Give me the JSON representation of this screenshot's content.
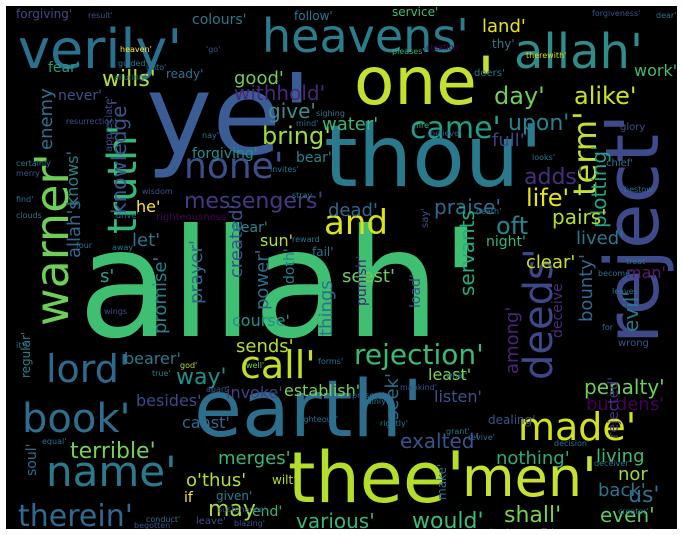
{
  "background": "#000000",
  "palette": [
    "#440154",
    "#482878",
    "#3e4989",
    "#31688e",
    "#26828e",
    "#1f9e89",
    "#35b779",
    "#6ece58",
    "#b5de2b",
    "#fde725"
  ],
  "words": [
    {
      "text": "allah'",
      "color": "#3fbf72"
    },
    {
      "text": "ye'",
      "color": "#3b5d96"
    },
    {
      "text": "thou'",
      "color": "#2a7a8e"
    },
    {
      "text": "one'",
      "color": "#c4e02e"
    },
    {
      "text": "earth'",
      "color": "#2b6f8d"
    },
    {
      "text": "reject'",
      "color": "#3e4a8a"
    },
    {
      "text": "thee'",
      "color": "#b5de2b"
    },
    {
      "text": "men'",
      "color": "#c8e031"
    },
    {
      "text": "verily'",
      "color": "#28728e"
    },
    {
      "text": "heavens'",
      "color": "#2b7c8d"
    },
    {
      "text": "allah'",
      "color": "#2f8c8b"
    },
    {
      "text": "book'",
      "color": "#2e6e8e"
    },
    {
      "text": "name'",
      "color": "#2a7a8e"
    },
    {
      "text": "warner'",
      "color": "#6ece58"
    },
    {
      "text": "truth'",
      "color": "#35b779"
    },
    {
      "text": "none'",
      "color": "#3b4f8a"
    },
    {
      "text": "lord'",
      "color": "#2c6b8e"
    },
    {
      "text": "call'",
      "color": "#c2df23"
    },
    {
      "text": "made'",
      "color": "#d2e21b"
    },
    {
      "text": "deeds'",
      "color": "#3f4788"
    },
    {
      "text": "and",
      "color": "#d8e219"
    },
    {
      "text": "came'",
      "color": "#1f9e89"
    },
    {
      "text": "therein'",
      "color": "#31688e"
    },
    {
      "text": "rejection'",
      "color": "#3aba76"
    },
    {
      "text": "term'",
      "color": "#c4e02e"
    },
    {
      "text": "day'",
      "color": "#6ece58"
    },
    {
      "text": "alike'",
      "color": "#d0e11c"
    },
    {
      "text": "upon'",
      "color": "#26828e"
    },
    {
      "text": "land'",
      "color": "#e5e419"
    },
    {
      "text": "wills'",
      "color": "#b8de29"
    },
    {
      "text": "work'",
      "color": "#3fbc73"
    },
    {
      "text": "withhold'",
      "color": "#482878"
    },
    {
      "text": "good'",
      "color": "#6ece58"
    },
    {
      "text": "give'",
      "color": "#3e8d8b"
    },
    {
      "text": "bring'",
      "color": "#a2da37"
    },
    {
      "text": "knowledge'",
      "color": "#3b528b"
    },
    {
      "text": "messengers'",
      "color": "#443a83"
    },
    {
      "text": "water'",
      "color": "#36b677"
    },
    {
      "text": "full'",
      "color": "#414487"
    },
    {
      "text": "adds'",
      "color": "#472f7d"
    },
    {
      "text": "life'",
      "color": "#e5e419"
    },
    {
      "text": "praise'",
      "color": "#2f6c8e"
    },
    {
      "text": "oft",
      "color": "#25848e"
    },
    {
      "text": "plotting'",
      "color": "#20a386"
    },
    {
      "text": "pairs'",
      "color": "#b5de2b"
    },
    {
      "text": "dead'",
      "color": "#31688e"
    },
    {
      "text": "created'",
      "color": "#3b528b"
    },
    {
      "text": "sun'",
      "color": "#b5de2b"
    },
    {
      "text": "servants'",
      "color": "#25ab82"
    },
    {
      "text": "lived'",
      "color": "#2a788e"
    },
    {
      "text": "night'",
      "color": "#35b779"
    },
    {
      "text": "promise'",
      "color": "#25838e"
    },
    {
      "text": "prayer'",
      "color": "#31688e"
    },
    {
      "text": "power'",
      "color": "#2f6b8e"
    },
    {
      "text": "doth'",
      "color": "#26828e"
    },
    {
      "text": "seest'",
      "color": "#6ece58"
    },
    {
      "text": "things",
      "color": "#2c728e"
    },
    {
      "text": "clear'",
      "color": "#cfe11c"
    },
    {
      "text": "bounty'",
      "color": "#31688e"
    },
    {
      "text": "man'",
      "color": "#5a1c6e"
    },
    {
      "text": "evil'",
      "color": "#29798e"
    },
    {
      "text": "penalty'",
      "color": "#6ece58"
    },
    {
      "text": "among'",
      "color": "#482677"
    },
    {
      "text": "course'",
      "color": "#20928c"
    },
    {
      "text": "sends'",
      "color": "#b5de2b"
    },
    {
      "text": "way'",
      "color": "#21918c"
    },
    {
      "text": "establish'",
      "color": "#7ad151"
    },
    {
      "text": "invoke'",
      "color": "#433e85"
    },
    {
      "text": "least'",
      "color": "#7fd34e"
    },
    {
      "text": "listen'",
      "color": "#3a538b"
    },
    {
      "text": "burdens'",
      "color": "#440154"
    },
    {
      "text": "terrible'",
      "color": "#75d054"
    },
    {
      "text": "canst'",
      "color": "#31688e"
    },
    {
      "text": "seek'",
      "color": "#2e6f8e"
    },
    {
      "text": "exalted'",
      "color": "#3b528b"
    },
    {
      "text": "nothing'",
      "color": "#28ae80"
    },
    {
      "text": "living",
      "color": "#3dbc74"
    },
    {
      "text": "nor",
      "color": "#a0da39"
    },
    {
      "text": "us'",
      "color": "#2c728e"
    },
    {
      "text": "merges'",
      "color": "#35b779"
    },
    {
      "text": "o'thus'",
      "color": "#b5de2b"
    },
    {
      "text": "may",
      "color": "#a5db36"
    },
    {
      "text": "various'",
      "color": "#35b779"
    },
    {
      "text": "would'",
      "color": "#3fbc73"
    },
    {
      "text": "shall'",
      "color": "#7ad151"
    },
    {
      "text": "even'",
      "color": "#5ec962"
    },
    {
      "text": "back'",
      "color": "#2c738e"
    },
    {
      "text": "let'",
      "color": "#2b758e"
    },
    {
      "text": "he'",
      "color": "#fde725"
    },
    {
      "text": "s'",
      "color": "#22a884"
    },
    {
      "text": "allah's",
      "color": "#31688e"
    },
    {
      "text": "knows'",
      "color": "#26828e"
    },
    {
      "text": "enemy",
      "color": "#2c728e"
    },
    {
      "text": "never'",
      "color": "#3b528b"
    },
    {
      "text": "fear'",
      "color": "#1f9e89"
    },
    {
      "text": "colours'",
      "color": "#2a788e"
    },
    {
      "text": "follow'",
      "color": "#29798e"
    },
    {
      "text": "service'",
      "color": "#3fbc73"
    },
    {
      "text": "forgiving'",
      "color": "#3e4989"
    },
    {
      "text": "forgiving'",
      "color": "#21918c"
    },
    {
      "text": "bear'",
      "color": "#25838e"
    },
    {
      "text": "hear'",
      "color": "#23888e"
    },
    {
      "text": "fail'",
      "color": "#2c728e"
    },
    {
      "text": "punish'",
      "color": "#482475"
    },
    {
      "text": "load'",
      "color": "#3b528b"
    },
    {
      "text": "deceive",
      "color": "#472c7a"
    },
    {
      "text": "bearer'",
      "color": "#2a788e"
    },
    {
      "text": "regular'",
      "color": "#26828e"
    },
    {
      "text": "besides'",
      "color": "#3e4989"
    },
    {
      "text": "soul'",
      "color": "#2c728e"
    },
    {
      "text": "rejected'",
      "color": "#46337f"
    },
    {
      "text": "righteousness'",
      "color": "#440154"
    },
    {
      "text": "wrong",
      "color": "#39568c"
    },
    {
      "text": "appreciate'",
      "color": "#3b528b"
    },
    {
      "text": "dealing'",
      "color": "#3b528b"
    },
    {
      "text": "end'",
      "color": "#35b779"
    },
    {
      "text": "given'",
      "color": "#26828e"
    },
    {
      "text": "wilt'",
      "color": "#b5de2b"
    },
    {
      "text": "leave'",
      "color": "#3b528b"
    },
    {
      "text": "make'",
      "color": "#2c728e"
    },
    {
      "text": "if",
      "color": "#fde725"
    },
    {
      "text": "say'",
      "color": "#3b528b"
    },
    {
      "text": "ready'",
      "color": "#2c728e"
    },
    {
      "text": "thy'",
      "color": "#2a788e"
    },
    {
      "text": "creation'",
      "color": "#440154"
    },
    {
      "text": "doers'",
      "color": "#2a788e"
    },
    {
      "text": "glory",
      "color": "#3b528b"
    },
    {
      "text": "chief'",
      "color": "#2c728e"
    },
    {
      "text": "looks'",
      "color": "#2a788e"
    },
    {
      "text": "bestow",
      "color": "#2c728e"
    },
    {
      "text": "treat'",
      "color": "#2c728e"
    },
    {
      "text": "become'",
      "color": "#2c728e"
    },
    {
      "text": "sustenance'",
      "color": "#3b528b"
    },
    {
      "text": "conduct'",
      "color": "#2c728e"
    },
    {
      "text": "blazing'",
      "color": "#3b528b"
    },
    {
      "text": "companions'",
      "color": "#3b528b"
    },
    {
      "text": "affairs",
      "color": "#2a788e"
    },
    {
      "text": "satan'",
      "color": "#3b528b"
    },
    {
      "text": "creator'",
      "color": "#2a788e"
    },
    {
      "text": "deceiver'",
      "color": "#2c728e"
    },
    {
      "text": "decision'",
      "color": "#2c728e"
    },
    {
      "text": "grant'",
      "color": "#2c728e"
    },
    {
      "text": "revive'",
      "color": "#2c728e"
    },
    {
      "text": "rightly'",
      "color": "#2c728e"
    },
    {
      "text": "vainly'",
      "color": "#2c728e"
    },
    {
      "text": "righteous'",
      "color": "#2c728e"
    },
    {
      "text": "mankind'",
      "color": "#3b528b"
    },
    {
      "text": "present'",
      "color": "#2c728e"
    },
    {
      "text": "forms'",
      "color": "#2c728e"
    },
    {
      "text": "god'",
      "color": "#b5de2b"
    },
    {
      "text": "true'",
      "color": "#26828e"
    },
    {
      "text": "well'",
      "color": "#7ad151"
    },
    {
      "text": "apart'",
      "color": "#3b528b"
    },
    {
      "text": "equal'",
      "color": "#2c728e"
    },
    {
      "text": "wings",
      "color": "#3b528b"
    },
    {
      "text": "find'",
      "color": "#2c728e"
    },
    {
      "text": "clouds",
      "color": "#2c728e"
    },
    {
      "text": "certainly",
      "color": "#2c728e"
    },
    {
      "text": "resurrection'",
      "color": "#3b528b"
    },
    {
      "text": "alluring'",
      "color": "#2a788e"
    },
    {
      "text": "heaven'",
      "color": "#fde725"
    },
    {
      "text": "guided'",
      "color": "#2c728e"
    },
    {
      "text": "unto'",
      "color": "#2c728e"
    },
    {
      "text": "result'",
      "color": "#3b528b"
    },
    {
      "text": "forgiveness'",
      "color": "#3b528b"
    },
    {
      "text": "pleases'",
      "color": "#35b779"
    },
    {
      "text": "therewith'",
      "color": "#d8e219"
    },
    {
      "text": "fire",
      "color": "#35b779"
    },
    {
      "text": "believe'",
      "color": "#3b528b"
    },
    {
      "text": "sighing",
      "color": "#2a788e"
    },
    {
      "text": "mind'",
      "color": "#2c728e"
    },
    {
      "text": "invites'",
      "color": "#2c728e"
    },
    {
      "text": "stray",
      "color": "#2a788e"
    },
    {
      "text": "reward",
      "color": "#2c728e"
    },
    {
      "text": "wisdom",
      "color": "#3b528b"
    },
    {
      "text": "merry",
      "color": "#3b528b"
    },
    {
      "text": "drive'",
      "color": "#2c728e"
    },
    {
      "text": "four",
      "color": "#2c728e"
    },
    {
      "text": "away'",
      "color": "#2c728e"
    },
    {
      "text": "'go'",
      "color": "#3b528b"
    },
    {
      "text": "dear'",
      "color": "#2c728e"
    },
    {
      "text": "what'",
      "color": "#2c728e"
    },
    {
      "text": "for",
      "color": "#2c728e"
    },
    {
      "text": "leaves",
      "color": "#2c728e"
    },
    {
      "text": "death'",
      "color": "#2c728e"
    },
    {
      "text": "nay'",
      "color": "#2c728e"
    },
    {
      "text": "it's",
      "color": "#2c728e"
    },
    {
      "text": "begotten'",
      "color": "#3b528b"
    }
  ]
}
